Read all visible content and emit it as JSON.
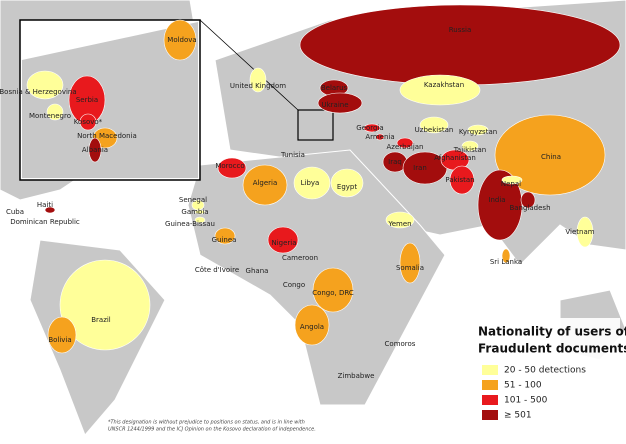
{
  "legend": {
    "title_lines": [
      "Nationality of users of",
      "Fraudulent documents"
    ],
    "items": [
      {
        "label": "20 - 50 detections",
        "color": "#ffff99"
      },
      {
        "label": "51 - 100",
        "color": "#f5a21e"
      },
      {
        "label": "101 - 500",
        "color": "#e8191d"
      },
      {
        "label": "≥ 501",
        "color": "#a30d0d"
      }
    ]
  },
  "regions": [
    {
      "name": "Moldova",
      "color": "#f5a21e"
    },
    {
      "name": "Bosnia & Herzegovina",
      "color": "#ffff99"
    },
    {
      "name": "Serbia",
      "color": "#e8191d"
    },
    {
      "name": "Montenegro",
      "color": "#ffff99"
    },
    {
      "name": "Kosovo*",
      "color": "#e8191d"
    },
    {
      "name": "North Macedonia",
      "color": "#f5a21e"
    },
    {
      "name": "Albania",
      "color": "#a30d0d"
    },
    {
      "name": "United Kingdom",
      "color": "#ffff99"
    },
    {
      "name": "Belarus",
      "color": "#a30d0d"
    },
    {
      "name": "Ukraine",
      "color": "#a30d0d"
    },
    {
      "name": "Russia",
      "color": "#a30d0d"
    },
    {
      "name": "Kazakhstan",
      "color": "#ffff99"
    },
    {
      "name": "Georgia",
      "color": "#e8191d"
    },
    {
      "name": "Armenia",
      "color": "#e8191d"
    },
    {
      "name": "Azerbaijan",
      "color": "#e8191d"
    },
    {
      "name": "Uzbekistan",
      "color": "#ffff99"
    },
    {
      "name": "Kyrgyzstan",
      "color": "#ffff99"
    },
    {
      "name": "Tajikistan",
      "color": "#ffff99"
    },
    {
      "name": "China",
      "color": "#f5a21e"
    },
    {
      "name": "Iraq",
      "color": "#a30d0d"
    },
    {
      "name": "Iran",
      "color": "#a30d0d"
    },
    {
      "name": "Afghanistan",
      "color": "#e8191d"
    },
    {
      "name": "Pakistan",
      "color": "#e8191d"
    },
    {
      "name": "India",
      "color": "#a30d0d"
    },
    {
      "name": "Nepal",
      "color": "#ffff99"
    },
    {
      "name": "Bangladesh",
      "color": "#a30d0d"
    },
    {
      "name": "Vietnam",
      "color": "#ffff99"
    },
    {
      "name": "Sri Lanka",
      "color": "#f5a21e"
    },
    {
      "name": "Morocco",
      "color": "#e8191d"
    },
    {
      "name": "Tunisia"
    },
    {
      "name": "Algeria",
      "color": "#f5a21e"
    },
    {
      "name": "Libya",
      "color": "#ffff99"
    },
    {
      "name": "Egypt",
      "color": "#ffff99"
    },
    {
      "name": "Yemen",
      "color": "#ffff99"
    },
    {
      "name": "Somalia",
      "color": "#f5a21e"
    },
    {
      "name": "Senegal",
      "color": "#ffff99"
    },
    {
      "name": "Gambia",
      "color": "#ffff99"
    },
    {
      "name": "Guinea-Bissau",
      "color": "#ffff99"
    },
    {
      "name": "Guinea",
      "color": "#f5a21e"
    },
    {
      "name": "Côte d'Ivoire"
    },
    {
      "name": "Ghana"
    },
    {
      "name": "Nigeria",
      "color": "#e8191d"
    },
    {
      "name": "Cameroon"
    },
    {
      "name": "Congo"
    },
    {
      "name": "Congo, DRC",
      "color": "#f5a21e"
    },
    {
      "name": "Angola",
      "color": "#f5a21e"
    },
    {
      "name": "Zimbabwe"
    },
    {
      "name": "Comoros"
    },
    {
      "name": "Cuba"
    },
    {
      "name": "Haiti"
    },
    {
      "name": "Dominican Republic",
      "color": "#a30d0d"
    },
    {
      "name": "Brazil",
      "color": "#ffff99"
    },
    {
      "name": "Bolivia",
      "color": "#f5a21e"
    }
  ],
  "footnote_lines": [
    "*This designation is without prejudice to positions on status, and is in line with",
    "UNSCR 1244/1999 and the ICJ Opinion on the Kosovo declaration of independence."
  ]
}
